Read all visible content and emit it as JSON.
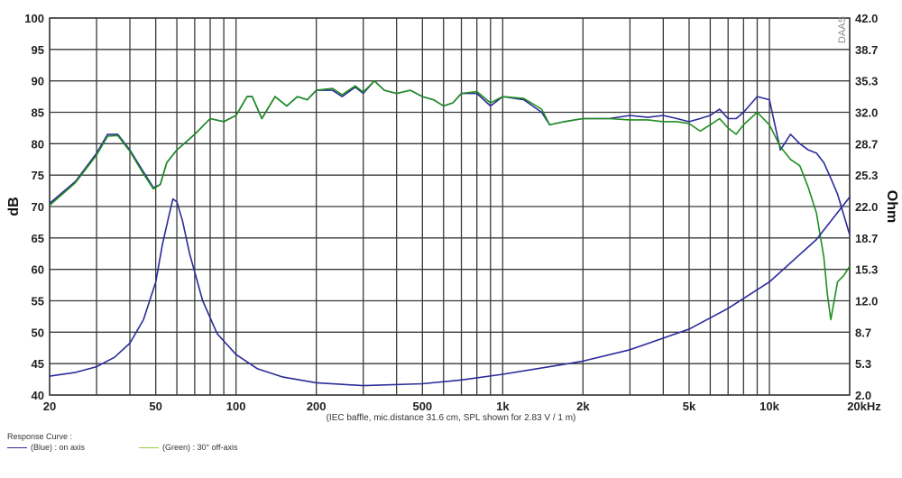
{
  "chart_data": {
    "type": "line",
    "watermark": "DAAS",
    "ylabel": "dB",
    "y2label": "Ohm",
    "note": "(IEC baffle, mic.distance 31.6 cm, SPL shown for 2.83 V / 1 m)",
    "x_scale": "log",
    "xlim": [
      20,
      20000
    ],
    "ylim": [
      40,
      100
    ],
    "y2lim": [
      2.0,
      42.0
    ],
    "x_ticks": [
      {
        "value": 20,
        "label": "20"
      },
      {
        "value": 50,
        "label": "50"
      },
      {
        "value": 100,
        "label": "100"
      },
      {
        "value": 200,
        "label": "200"
      },
      {
        "value": 500,
        "label": "500"
      },
      {
        "value": 1000,
        "label": "1k"
      },
      {
        "value": 2000,
        "label": "2k"
      },
      {
        "value": 5000,
        "label": "5k"
      },
      {
        "value": 10000,
        "label": "10k"
      },
      {
        "value": 20000,
        "label": "20kHz"
      }
    ],
    "y_ticks": [
      "40",
      "45",
      "50",
      "55",
      "60",
      "65",
      "70",
      "75",
      "80",
      "85",
      "90",
      "95",
      "100"
    ],
    "y2_ticks": [
      "2.0",
      "5.3",
      "8.7",
      "12.0",
      "15.3",
      "18.7",
      "22.0",
      "25.3",
      "28.7",
      "32.0",
      "35.3",
      "38.7",
      "42.0"
    ],
    "grid": true,
    "legend": {
      "title": "Response Curve :",
      "entries": [
        {
          "label": "(Blue) : on axis",
          "color": "#2b2b9a"
        },
        {
          "label": "(Green) : 30° off-axis",
          "color": "#1f8f1f"
        }
      ]
    },
    "series": [
      {
        "color": "#2b2b9a",
        "axis": "left",
        "points": [
          [
            20,
            70.5
          ],
          [
            25,
            74
          ],
          [
            30,
            78.5
          ],
          [
            33,
            81.5
          ],
          [
            36,
            81.5
          ],
          [
            40,
            79
          ],
          [
            45,
            75.5
          ],
          [
            49,
            73
          ],
          [
            52,
            73.5
          ],
          [
            55,
            77
          ],
          [
            60,
            79
          ],
          [
            70,
            81.5
          ],
          [
            80,
            84
          ],
          [
            90,
            83.5
          ],
          [
            100,
            84.5
          ],
          [
            110,
            87.5
          ],
          [
            115,
            87.5
          ],
          [
            125,
            84
          ],
          [
            140,
            87.5
          ],
          [
            155,
            86
          ],
          [
            170,
            87.5
          ],
          [
            185,
            87
          ],
          [
            200,
            88.5
          ],
          [
            230,
            88.5
          ],
          [
            250,
            87.5
          ],
          [
            280,
            89
          ],
          [
            300,
            88
          ],
          [
            330,
            90
          ],
          [
            360,
            88.5
          ],
          [
            400,
            88
          ],
          [
            450,
            88.5
          ],
          [
            500,
            87.5
          ],
          [
            550,
            87
          ],
          [
            600,
            86
          ],
          [
            650,
            86.5
          ],
          [
            700,
            88
          ],
          [
            800,
            88
          ],
          [
            900,
            86
          ],
          [
            1000,
            87.5
          ],
          [
            1200,
            87
          ],
          [
            1400,
            85
          ],
          [
            1500,
            83
          ],
          [
            1700,
            83.5
          ],
          [
            2000,
            84
          ],
          [
            2500,
            84
          ],
          [
            3000,
            84.5
          ],
          [
            3500,
            84.2
          ],
          [
            4000,
            84.5
          ],
          [
            4500,
            84
          ],
          [
            5000,
            83.5
          ],
          [
            5500,
            84
          ],
          [
            6000,
            84.5
          ],
          [
            6500,
            85.5
          ],
          [
            7000,
            84
          ],
          [
            7500,
            84
          ],
          [
            8000,
            85
          ],
          [
            9000,
            87.5
          ],
          [
            10000,
            87
          ],
          [
            11000,
            79
          ],
          [
            12000,
            81.5
          ],
          [
            13000,
            80
          ],
          [
            14000,
            79
          ],
          [
            15000,
            78.5
          ],
          [
            16000,
            77
          ],
          [
            17000,
            74.5
          ],
          [
            18000,
            72
          ],
          [
            20000,
            65.5
          ]
        ]
      },
      {
        "color": "#1f8f1f",
        "axis": "left",
        "points": [
          [
            20,
            70.2
          ],
          [
            25,
            73.8
          ],
          [
            30,
            78.2
          ],
          [
            33,
            81.2
          ],
          [
            36,
            81.3
          ],
          [
            40,
            78.8
          ],
          [
            45,
            75.2
          ],
          [
            49,
            72.8
          ],
          [
            52,
            73.5
          ],
          [
            55,
            77
          ],
          [
            60,
            79
          ],
          [
            70,
            81.5
          ],
          [
            80,
            84
          ],
          [
            90,
            83.5
          ],
          [
            100,
            84.5
          ],
          [
            110,
            87.5
          ],
          [
            115,
            87.5
          ],
          [
            125,
            84
          ],
          [
            140,
            87.5
          ],
          [
            155,
            86
          ],
          [
            170,
            87.5
          ],
          [
            185,
            87
          ],
          [
            200,
            88.5
          ],
          [
            230,
            88.8
          ],
          [
            250,
            87.8
          ],
          [
            280,
            89.2
          ],
          [
            300,
            88.2
          ],
          [
            330,
            90
          ],
          [
            360,
            88.5
          ],
          [
            400,
            88
          ],
          [
            450,
            88.5
          ],
          [
            500,
            87.5
          ],
          [
            550,
            87
          ],
          [
            600,
            86
          ],
          [
            650,
            86.5
          ],
          [
            700,
            88
          ],
          [
            800,
            88.3
          ],
          [
            900,
            86.5
          ],
          [
            1000,
            87.5
          ],
          [
            1200,
            87.2
          ],
          [
            1400,
            85.5
          ],
          [
            1500,
            83
          ],
          [
            1700,
            83.5
          ],
          [
            2000,
            84
          ],
          [
            2500,
            84
          ],
          [
            3000,
            83.8
          ],
          [
            3500,
            83.8
          ],
          [
            4000,
            83.5
          ],
          [
            4500,
            83.5
          ],
          [
            5000,
            83.2
          ],
          [
            5500,
            82
          ],
          [
            6000,
            83
          ],
          [
            6500,
            84
          ],
          [
            7000,
            82.5
          ],
          [
            7500,
            81.5
          ],
          [
            8000,
            83
          ],
          [
            9000,
            85
          ],
          [
            10000,
            83
          ],
          [
            11000,
            79.5
          ],
          [
            12000,
            77.5
          ],
          [
            13000,
            76.5
          ],
          [
            14000,
            73
          ],
          [
            15000,
            69
          ],
          [
            16000,
            62
          ],
          [
            16500,
            56
          ],
          [
            17000,
            52
          ],
          [
            18000,
            58
          ],
          [
            19000,
            59
          ],
          [
            20000,
            60.5
          ]
        ]
      },
      {
        "color": "#2b2b9a",
        "axis": "right",
        "points": [
          [
            20,
            4.0
          ],
          [
            25,
            4.4
          ],
          [
            30,
            5.0
          ],
          [
            35,
            6.0
          ],
          [
            40,
            7.5
          ],
          [
            45,
            10
          ],
          [
            50,
            14
          ],
          [
            53,
            18
          ],
          [
            56,
            21
          ],
          [
            58,
            22.8
          ],
          [
            60,
            22.5
          ],
          [
            63,
            20.5
          ],
          [
            67,
            17
          ],
          [
            75,
            12
          ],
          [
            85,
            8.5
          ],
          [
            100,
            6.3
          ],
          [
            120,
            4.8
          ],
          [
            150,
            3.9
          ],
          [
            200,
            3.3
          ],
          [
            300,
            3.0
          ],
          [
            500,
            3.2
          ],
          [
            700,
            3.6
          ],
          [
            1000,
            4.2
          ],
          [
            1500,
            5.0
          ],
          [
            2000,
            5.6
          ],
          [
            3000,
            6.8
          ],
          [
            5000,
            9.0
          ],
          [
            7000,
            11.2
          ],
          [
            10000,
            14.0
          ],
          [
            15000,
            18.5
          ],
          [
            20000,
            23.0
          ]
        ]
      }
    ]
  }
}
